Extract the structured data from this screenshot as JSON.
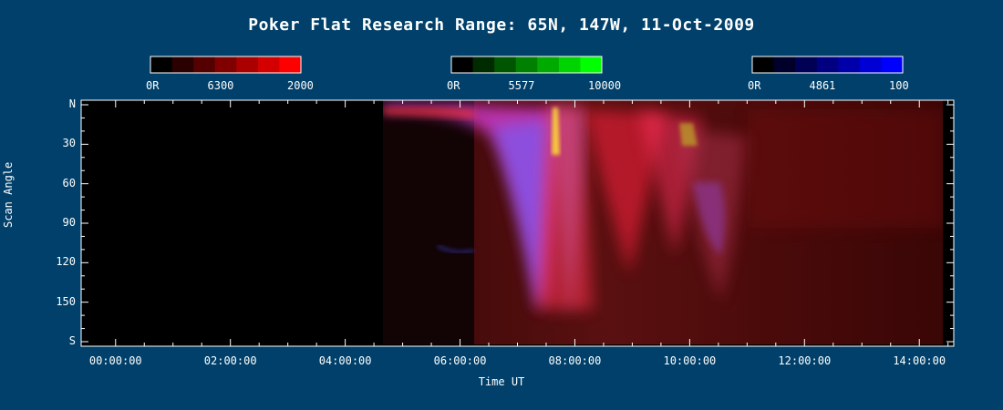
{
  "title": "Poker Flat Research Range: 65N, 147W, 11-Oct-2009",
  "colorbars": [
    {
      "label_min": "0R",
      "label_mid": "6300",
      "label_max": "2000",
      "colors": [
        "#000000",
        "#2a0000",
        "#550000",
        "#800000",
        "#aa0000",
        "#d40000",
        "#ff0000"
      ]
    },
    {
      "label_min": "0R",
      "label_mid": "5577",
      "label_max": "10000",
      "colors": [
        "#000000",
        "#002a00",
        "#005500",
        "#008000",
        "#00aa00",
        "#00d400",
        "#00ff00"
      ]
    },
    {
      "label_min": "0R",
      "label_mid": "4861",
      "label_max": "100",
      "colors": [
        "#000000",
        "#00002a",
        "#000055",
        "#000080",
        "#0000aa",
        "#0000d4",
        "#0000ff"
      ]
    }
  ],
  "chart_data": {
    "type": "heatmap",
    "title": "Poker Flat Research Range: 65N, 147W, 11-Oct-2009",
    "xlabel": "Time UT",
    "ylabel": "Scan Angle",
    "xlim_hours": [
      -0.6,
      14.6
    ],
    "xticks": [
      "00:00:00",
      "02:00:00",
      "04:00:00",
      "06:00:00",
      "08:00:00",
      "10:00:00",
      "12:00:00",
      "14:00:00"
    ],
    "xtick_hours": [
      0,
      2,
      4,
      6,
      8,
      10,
      12,
      14
    ],
    "ylim": [
      0,
      180
    ],
    "yticks": [
      "N",
      "30",
      "60",
      "90",
      "120",
      "150",
      "S"
    ],
    "ytick_values": [
      0,
      30,
      60,
      90,
      120,
      150,
      180
    ],
    "data_start_hour": 4.55,
    "data_end_hour": 14.4
  }
}
